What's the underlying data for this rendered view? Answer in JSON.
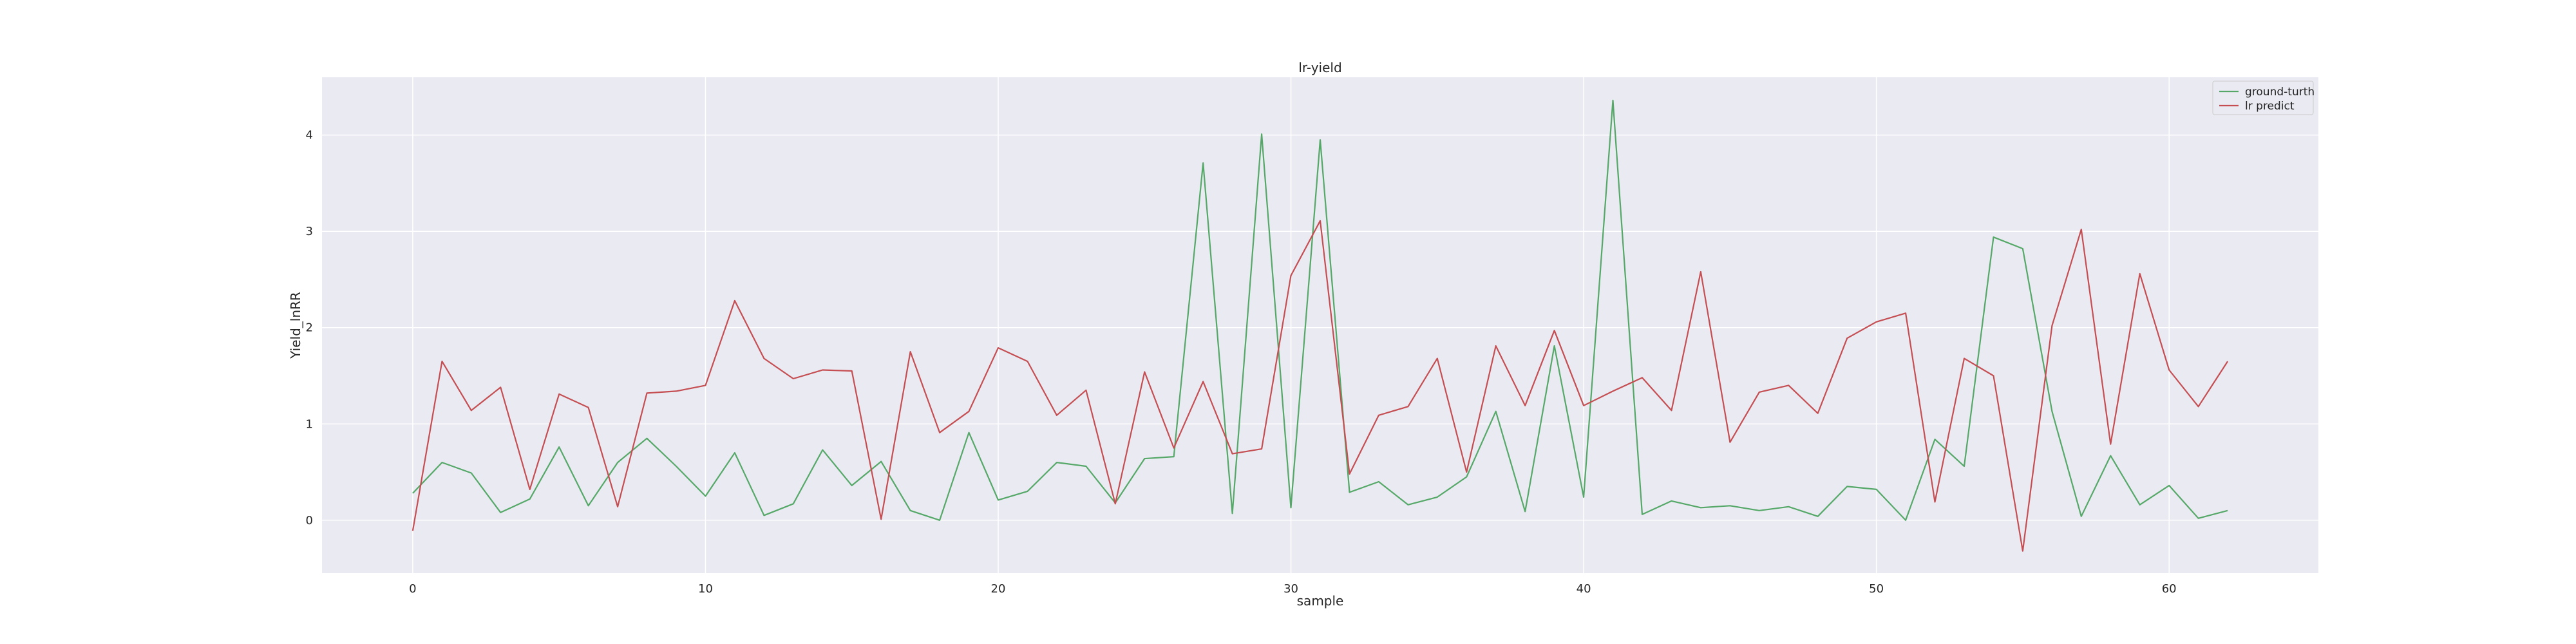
{
  "chart_data": {
    "type": "line",
    "title": "lr-yield",
    "xlabel": "sample",
    "ylabel": "Yield_lnRR",
    "xlim": [
      -3.1,
      65.1
    ],
    "ylim": [
      -0.55,
      4.6
    ],
    "xticks": [
      0,
      10,
      20,
      30,
      40,
      50,
      60
    ],
    "yticks": [
      0,
      1,
      2,
      3,
      4
    ],
    "grid": true,
    "legend_position": "top-right",
    "background": "#eaeaf2",
    "x": [
      0,
      1,
      2,
      3,
      4,
      5,
      6,
      7,
      8,
      9,
      10,
      11,
      12,
      13,
      14,
      15,
      16,
      17,
      18,
      19,
      20,
      21,
      22,
      23,
      24,
      25,
      26,
      27,
      28,
      29,
      30,
      31,
      32,
      33,
      34,
      35,
      36,
      37,
      38,
      39,
      40,
      41,
      42,
      43,
      44,
      45,
      46,
      47,
      48,
      49,
      50,
      51,
      52,
      53,
      54,
      55,
      56,
      57,
      58,
      59,
      60,
      61,
      62
    ],
    "series": [
      {
        "name": "ground-turth",
        "color": "#55a868",
        "values": [
          0.28,
          0.6,
          0.49,
          0.08,
          0.22,
          0.76,
          0.15,
          0.6,
          0.85,
          0.56,
          0.25,
          0.7,
          0.05,
          0.17,
          0.73,
          0.36,
          0.61,
          0.1,
          0.0,
          0.91,
          0.21,
          0.3,
          0.6,
          0.56,
          0.18,
          0.64,
          0.66,
          3.71,
          0.07,
          4.01,
          0.13,
          3.95,
          0.29,
          0.4,
          0.16,
          0.24,
          0.45,
          1.13,
          0.09,
          1.81,
          0.24,
          4.36,
          0.06,
          0.2,
          0.13,
          0.15,
          0.1,
          0.14,
          0.04,
          0.35,
          0.32,
          0.0,
          0.84,
          0.56,
          2.94,
          2.82,
          1.13,
          0.04,
          0.67,
          0.16,
          0.36,
          0.02,
          0.1
        ]
      },
      {
        "name": "lr predict",
        "color": "#c44e52",
        "values": [
          -0.11,
          1.65,
          1.14,
          1.38,
          0.32,
          1.31,
          1.17,
          0.14,
          1.32,
          1.34,
          1.4,
          2.28,
          1.68,
          1.47,
          1.56,
          1.55,
          0.01,
          1.75,
          0.91,
          1.13,
          1.79,
          1.65,
          1.09,
          1.35,
          0.17,
          1.54,
          0.75,
          1.44,
          0.69,
          0.74,
          2.54,
          3.11,
          0.48,
          1.09,
          1.18,
          1.68,
          0.5,
          1.81,
          1.19,
          1.97,
          1.19,
          1.34,
          1.48,
          1.14,
          2.58,
          0.81,
          1.33,
          1.4,
          1.11,
          1.89,
          2.06,
          2.15,
          0.19,
          1.68,
          1.5,
          -0.32,
          2.02,
          3.02,
          0.79,
          2.56,
          1.56,
          1.18,
          1.65
        ]
      }
    ]
  }
}
